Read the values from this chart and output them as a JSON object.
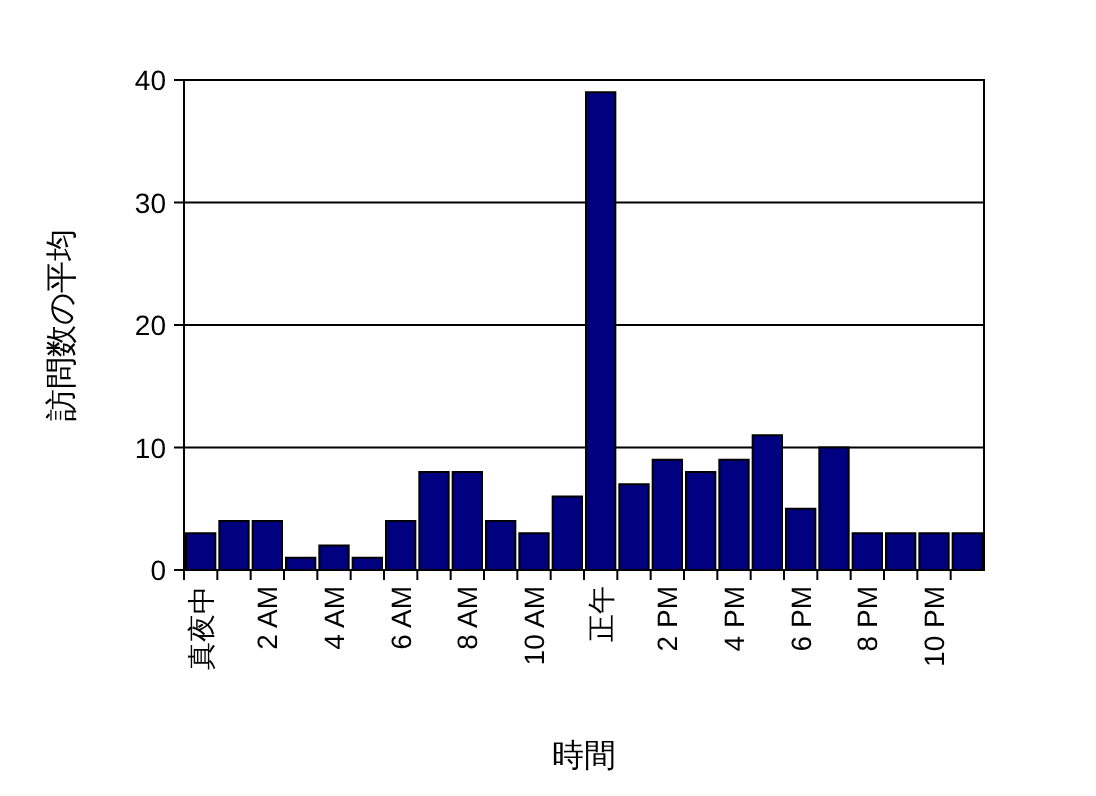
{
  "chart_data": {
    "type": "bar",
    "xlabel": "時間",
    "ylabel": "訪問数の平均",
    "categories": [
      "真夜中",
      null,
      "2 AM",
      null,
      "4 AM",
      null,
      "6 AM",
      null,
      "8 AM",
      null,
      "10 AM",
      null,
      "正午",
      null,
      "2 PM",
      null,
      "4 PM",
      null,
      "6 PM",
      null,
      "8 PM",
      null,
      "10 PM",
      null
    ],
    "values": [
      3,
      4,
      4,
      1,
      2,
      1,
      4,
      8,
      8,
      4,
      3,
      6,
      39,
      7,
      9,
      8,
      9,
      11,
      5,
      10,
      3,
      3,
      3,
      3
    ],
    "color": "#000080",
    "ylim": [
      0,
      40
    ],
    "yticks": [
      0,
      10,
      20,
      30,
      40
    ],
    "grid": "y"
  }
}
